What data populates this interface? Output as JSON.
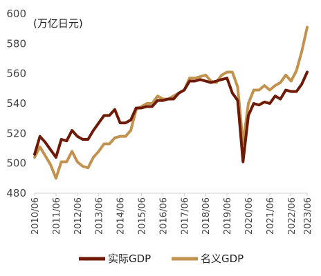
{
  "chart_data": {
    "type": "line",
    "unit_label": "(万亿日元)",
    "ylim": [
      480,
      600
    ],
    "y_ticks": [
      480,
      500,
      520,
      540,
      560,
      580,
      600
    ],
    "x_tick_labels": [
      "2010/06",
      "2011/06",
      "2012/06",
      "2013/06",
      "2014/06",
      "2015/06",
      "2016/06",
      "2017/06",
      "2018/06",
      "2019/06",
      "2020/06",
      "2021/06",
      "2022/06",
      "2023/06"
    ],
    "x_start": "2010/06",
    "x_step": "quarter",
    "grid": false,
    "legend_position": "bottom",
    "series": [
      {
        "name": "实际GDP",
        "color": "#6e1a06",
        "values": [
          506,
          518,
          514,
          509,
          504,
          516,
          515,
          522,
          518,
          516,
          516,
          522,
          527,
          532,
          532,
          536,
          527,
          527,
          529,
          537,
          537,
          538,
          538,
          542,
          542,
          543,
          543,
          547,
          549,
          555,
          555,
          556,
          555,
          554,
          555,
          556,
          557,
          547,
          542,
          501,
          532,
          540,
          539,
          541,
          540,
          545,
          543,
          549,
          548,
          548,
          553,
          561
        ]
      },
      {
        "name": "名义GDP",
        "color": "#c2924f",
        "values": [
          504,
          511,
          505,
          499,
          490,
          501,
          501,
          508,
          501,
          498,
          497,
          504,
          508,
          513,
          513,
          517,
          518,
          518,
          522,
          536,
          538,
          540,
          540,
          545,
          543,
          543,
          545,
          547,
          549,
          557,
          557,
          558,
          559,
          555,
          554,
          559,
          561,
          561,
          551,
          513,
          540,
          549,
          549,
          552,
          549,
          552,
          554,
          559,
          555,
          562,
          575,
          591
        ]
      }
    ]
  }
}
